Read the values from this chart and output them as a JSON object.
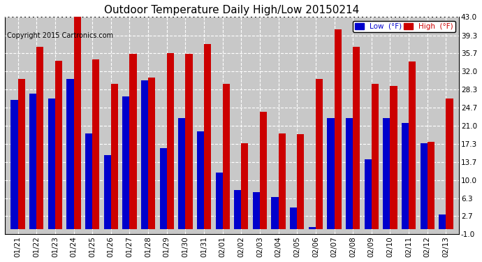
{
  "title": "Outdoor Temperature Daily High/Low 20150214",
  "copyright": "Copyright 2015 Cartronics.com",
  "dates": [
    "01/21",
    "01/22",
    "01/23",
    "01/24",
    "01/25",
    "01/26",
    "01/27",
    "01/28",
    "01/29",
    "01/30",
    "01/31",
    "02/01",
    "02/02",
    "02/03",
    "02/04",
    "02/05",
    "02/06",
    "02/07",
    "02/08",
    "02/09",
    "02/10",
    "02/11",
    "02/12",
    "02/13"
  ],
  "highs": [
    30.5,
    37.0,
    34.2,
    43.0,
    34.5,
    29.5,
    35.5,
    30.8,
    35.7,
    35.5,
    37.5,
    29.5,
    17.5,
    23.8,
    19.5,
    19.3,
    30.5,
    40.5,
    37.0,
    29.5,
    29.0,
    34.0,
    17.8,
    26.5
  ],
  "lows": [
    26.2,
    27.5,
    26.5,
    30.5,
    19.5,
    15.0,
    27.0,
    30.2,
    16.5,
    22.5,
    19.8,
    11.5,
    8.0,
    7.5,
    6.5,
    4.5,
    0.5,
    22.5,
    22.5,
    14.2,
    22.5,
    21.5,
    17.5,
    3.0
  ],
  "ylim": [
    -1.0,
    43.0
  ],
  "yticks": [
    -1.0,
    2.7,
    6.3,
    10.0,
    13.7,
    17.3,
    21.0,
    24.7,
    28.3,
    32.0,
    35.7,
    39.3,
    43.0
  ],
  "bar_width": 0.38,
  "low_color": "#0000cc",
  "high_color": "#cc0000",
  "bg_color": "#ffffff",
  "plot_bg_color": "#c8c8c8",
  "grid_color": "#ffffff",
  "title_fontsize": 11,
  "copyright_fontsize": 7,
  "tick_fontsize": 7.5,
  "legend_low_label": "Low  (°F)",
  "legend_high_label": "High  (°F)"
}
